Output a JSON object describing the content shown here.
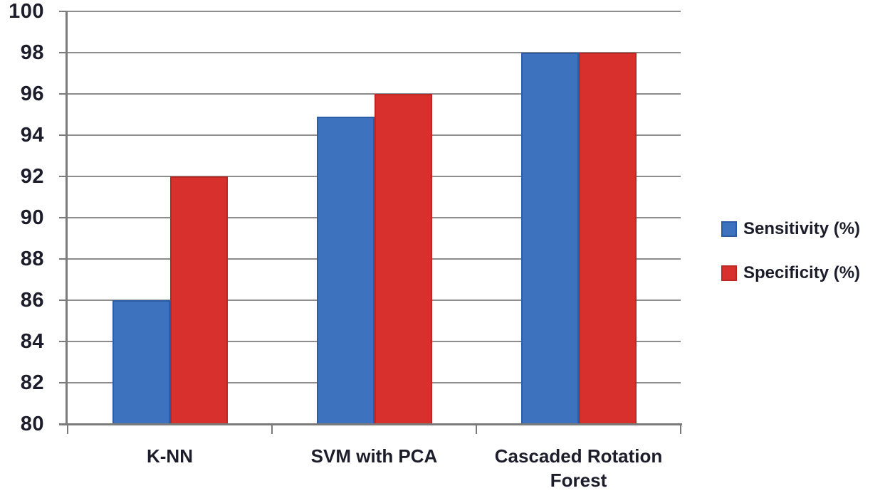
{
  "chart_data": {
    "type": "bar",
    "title": "",
    "xlabel": "",
    "ylabel": "",
    "categories": [
      "K-NN",
      "SVM with PCA",
      "Cascaded Rotation Forest"
    ],
    "series": [
      {
        "name": "Sensitivity (%)",
        "color": "#3d72bf",
        "border_color": "#2b5ca8",
        "values": [
          86,
          94.9,
          98
        ]
      },
      {
        "name": "Specificity (%)",
        "color": "#d8302d",
        "border_color": "#bd2724",
        "values": [
          92,
          96,
          98
        ]
      }
    ],
    "ylim": [
      80,
      100
    ],
    "ytick_step": 2,
    "ytick_labels": [
      "80",
      "82",
      "84",
      "86",
      "88",
      "90",
      "92",
      "94",
      "96",
      "98",
      "100"
    ],
    "grid": true,
    "legend_position": "right",
    "axes_style": {
      "gridline_color": "#8c8c8c",
      "axis_color": "#7a7a7a",
      "text_color": "#1c1c2b"
    }
  }
}
